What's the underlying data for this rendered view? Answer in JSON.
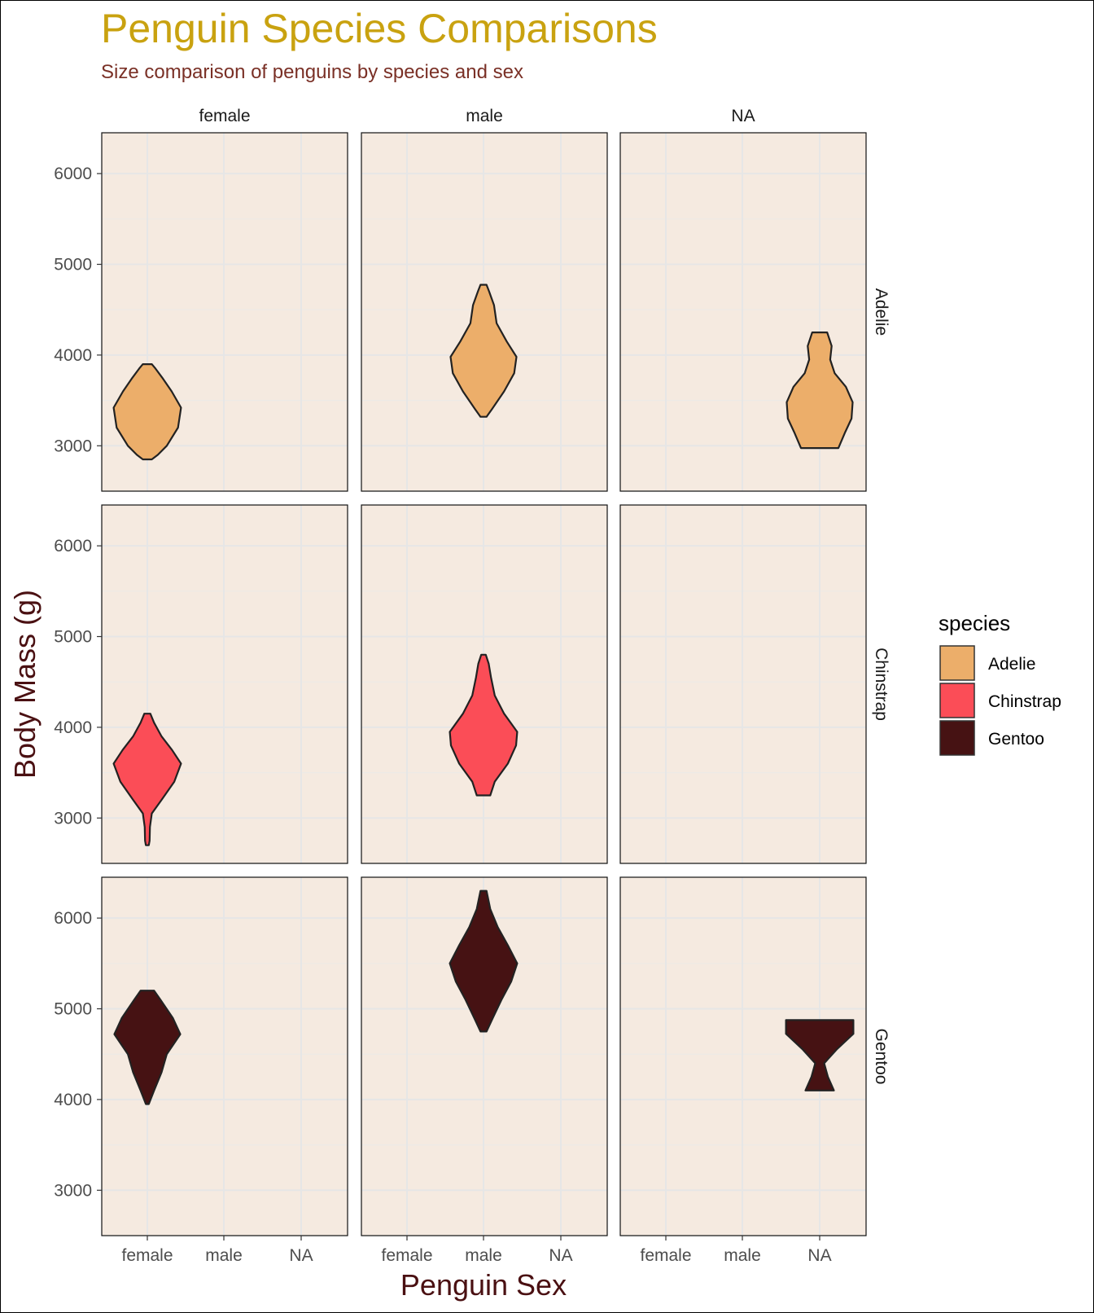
{
  "chart_data": {
    "type": "violin",
    "title": "Penguin Species Comparisons",
    "subtitle": "Size comparison of penguins by species and sex",
    "xlabel": "Penguin Sex",
    "ylabel": "Body Mass (g)",
    "x_categories": [
      "female",
      "male",
      "NA"
    ],
    "column_facets": [
      "female",
      "male",
      "NA"
    ],
    "row_facets": [
      "Adelie",
      "Chinstrap",
      "Gentoo"
    ],
    "ylim": [
      2500,
      6450
    ],
    "yticks": [
      "3000",
      "4000",
      "5000",
      "6000"
    ],
    "legend": {
      "title": "species",
      "position": "right",
      "entries": [
        {
          "name": "Adelie",
          "color": "#ECAE6A"
        },
        {
          "name": "Chinstrap",
          "color": "#FB4D57"
        },
        {
          "name": "Gentoo",
          "color": "#461213"
        }
      ]
    },
    "colors": {
      "title": "#C9A210",
      "subtitle": "#7A3026",
      "axis_title": "#4A1012",
      "panel_bg": "#F5EAE0",
      "grid": "#E6E6E6",
      "outline": "#222222"
    },
    "violins": [
      {
        "species": "Adelie",
        "facet": "female",
        "x": "female",
        "profile": [
          [
            2850,
            0.12
          ],
          [
            2900,
            0.28
          ],
          [
            3000,
            0.52
          ],
          [
            3200,
            0.82
          ],
          [
            3420,
            0.9
          ],
          [
            3600,
            0.65
          ],
          [
            3750,
            0.4
          ],
          [
            3850,
            0.22
          ],
          [
            3900,
            0.12
          ]
        ]
      },
      {
        "species": "Adelie",
        "facet": "male",
        "x": "male",
        "profile": [
          [
            3320,
            0.08
          ],
          [
            3400,
            0.22
          ],
          [
            3600,
            0.55
          ],
          [
            3800,
            0.82
          ],
          [
            3980,
            0.88
          ],
          [
            4150,
            0.62
          ],
          [
            4350,
            0.35
          ],
          [
            4550,
            0.28
          ],
          [
            4700,
            0.15
          ],
          [
            4775,
            0.08
          ]
        ]
      },
      {
        "species": "Adelie",
        "facet": "NA",
        "x": "NA",
        "profile": [
          [
            2975,
            0.5
          ],
          [
            3150,
            0.68
          ],
          [
            3300,
            0.85
          ],
          [
            3480,
            0.88
          ],
          [
            3650,
            0.7
          ],
          [
            3800,
            0.4
          ],
          [
            3950,
            0.28
          ],
          [
            4100,
            0.32
          ],
          [
            4250,
            0.2
          ]
        ]
      },
      {
        "species": "Chinstrap",
        "facet": "female",
        "x": "female",
        "profile": [
          [
            2700,
            0.04
          ],
          [
            2750,
            0.06
          ],
          [
            2900,
            0.07
          ],
          [
            3050,
            0.12
          ],
          [
            3200,
            0.38
          ],
          [
            3400,
            0.72
          ],
          [
            3600,
            0.9
          ],
          [
            3750,
            0.66
          ],
          [
            3900,
            0.38
          ],
          [
            4050,
            0.18
          ],
          [
            4150,
            0.08
          ]
        ]
      },
      {
        "species": "Chinstrap",
        "facet": "male",
        "x": "male",
        "profile": [
          [
            3250,
            0.18
          ],
          [
            3400,
            0.3
          ],
          [
            3600,
            0.65
          ],
          [
            3800,
            0.87
          ],
          [
            3950,
            0.9
          ],
          [
            4150,
            0.55
          ],
          [
            4350,
            0.3
          ],
          [
            4550,
            0.2
          ],
          [
            4700,
            0.14
          ],
          [
            4800,
            0.06
          ]
        ]
      },
      {
        "species": "Gentoo",
        "facet": "female",
        "x": "female",
        "profile": [
          [
            3950,
            0.04
          ],
          [
            4100,
            0.18
          ],
          [
            4300,
            0.38
          ],
          [
            4500,
            0.52
          ],
          [
            4720,
            0.88
          ],
          [
            4900,
            0.68
          ],
          [
            5100,
            0.35
          ],
          [
            5200,
            0.18
          ]
        ]
      },
      {
        "species": "Gentoo",
        "facet": "male",
        "x": "male",
        "profile": [
          [
            4750,
            0.08
          ],
          [
            4900,
            0.25
          ],
          [
            5100,
            0.48
          ],
          [
            5300,
            0.74
          ],
          [
            5500,
            0.9
          ],
          [
            5700,
            0.65
          ],
          [
            5900,
            0.38
          ],
          [
            6100,
            0.18
          ],
          [
            6300,
            0.08
          ]
        ]
      },
      {
        "species": "Gentoo",
        "facet": "NA",
        "x": "NA",
        "profile": [
          [
            4100,
            0.38
          ],
          [
            4250,
            0.22
          ],
          [
            4400,
            0.12
          ],
          [
            4550,
            0.45
          ],
          [
            4725,
            0.9
          ],
          [
            4875,
            0.9
          ]
        ]
      }
    ]
  }
}
